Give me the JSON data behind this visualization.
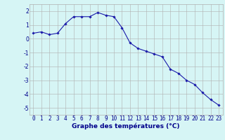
{
  "hours": [
    0,
    1,
    2,
    3,
    4,
    5,
    6,
    7,
    8,
    9,
    10,
    11,
    12,
    13,
    14,
    15,
    16,
    17,
    18,
    19,
    20,
    21,
    22,
    23
  ],
  "temps": [
    0.4,
    0.5,
    0.3,
    0.4,
    1.1,
    1.6,
    1.6,
    1.6,
    1.9,
    1.7,
    1.6,
    0.8,
    -0.3,
    -0.7,
    -0.9,
    -1.1,
    -1.3,
    -2.2,
    -2.5,
    -3.0,
    -3.3,
    -3.9,
    -4.4,
    -4.8
  ],
  "line_color": "#1a1aaa",
  "marker": "D",
  "marker_size": 1.8,
  "line_width": 0.8,
  "bg_color": "#d6f5f5",
  "xlabel": "Graphe des températures (°C)",
  "ylabel_ticks": [
    2,
    1,
    0,
    -1,
    -2,
    -3,
    -4,
    -5
  ],
  "xlim": [
    -0.5,
    23.5
  ],
  "ylim": [
    -5.5,
    2.5
  ],
  "axis_label_color": "#00008b",
  "tick_color": "#00008b",
  "xlabel_fontsize": 6.5,
  "tick_fontsize": 5.5,
  "grid_major_color": "#b0b0b0"
}
